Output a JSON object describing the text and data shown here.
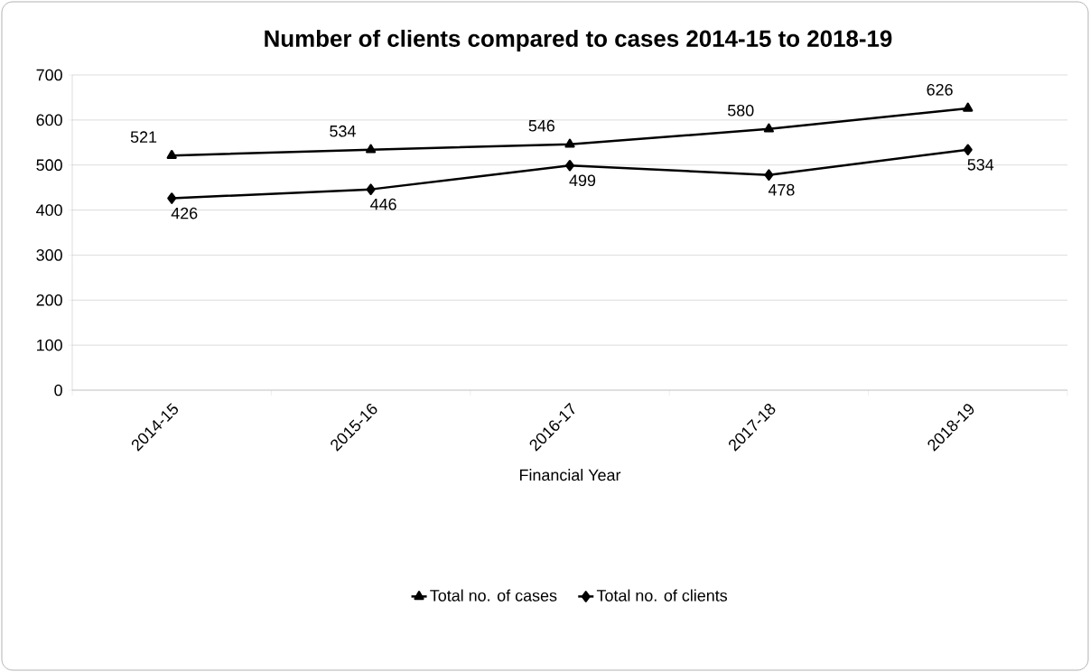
{
  "chart_data": {
    "type": "line",
    "title": "Number of clients compared to cases 2014-15 to 2018-19",
    "xlabel": "Financial Year",
    "categories": [
      "2014-15",
      "2015-16",
      "2016-17",
      "2017-18",
      "2018-19"
    ],
    "series": [
      {
        "name": "Total no. of cases",
        "color": "#000000",
        "marker": "triangle",
        "values": [
          521,
          534,
          546,
          580,
          626
        ]
      },
      {
        "name": "Total no. of clients",
        "color": "#000000",
        "marker": "diamond",
        "values": [
          426,
          446,
          499,
          478,
          534
        ]
      }
    ],
    "ylim": [
      0,
      700
    ],
    "yticks": [
      0,
      100,
      200,
      300,
      400,
      500,
      600,
      700
    ],
    "grid": "y",
    "legend": "bottom",
    "data_labels": true,
    "line_style": "solid"
  }
}
